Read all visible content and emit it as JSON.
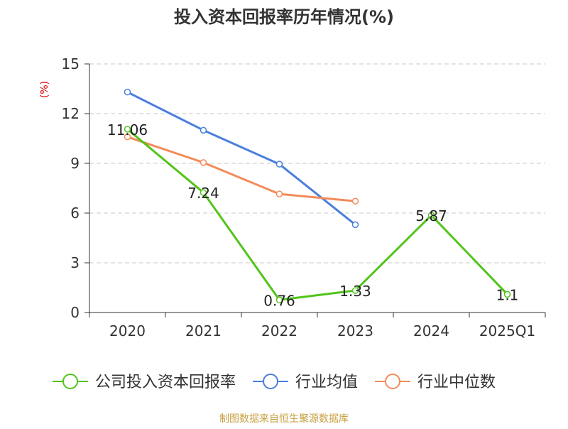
{
  "chart_data": {
    "type": "line",
    "title": "投入资本回报率历年情况(%)",
    "ylabel": "(%)",
    "xlabel": "",
    "categories": [
      "2020",
      "2021",
      "2022",
      "2023",
      "2024",
      "2025Q1"
    ],
    "ylim": [
      0,
      15
    ],
    "yticks": [
      0,
      3,
      6,
      9,
      12,
      15
    ],
    "grid": true,
    "legend_position": "bottom",
    "series": [
      {
        "name": "公司投入资本回报率",
        "color": "#52c41a",
        "values": [
          11.06,
          7.24,
          0.76,
          1.33,
          5.87,
          1.1
        ],
        "labels": [
          "11.06",
          "7.24",
          "0.76",
          "1.33",
          "5.87",
          "1.1"
        ]
      },
      {
        "name": "行业均值",
        "color": "#4a7fdc",
        "values": [
          13.3,
          11.0,
          8.95,
          5.3,
          null,
          null
        ]
      },
      {
        "name": "行业中位数",
        "color": "#f28c5a",
        "values": [
          10.6,
          9.05,
          7.15,
          6.72,
          null,
          null
        ]
      }
    ],
    "source": "制图数据来自恒生聚源数据库"
  }
}
